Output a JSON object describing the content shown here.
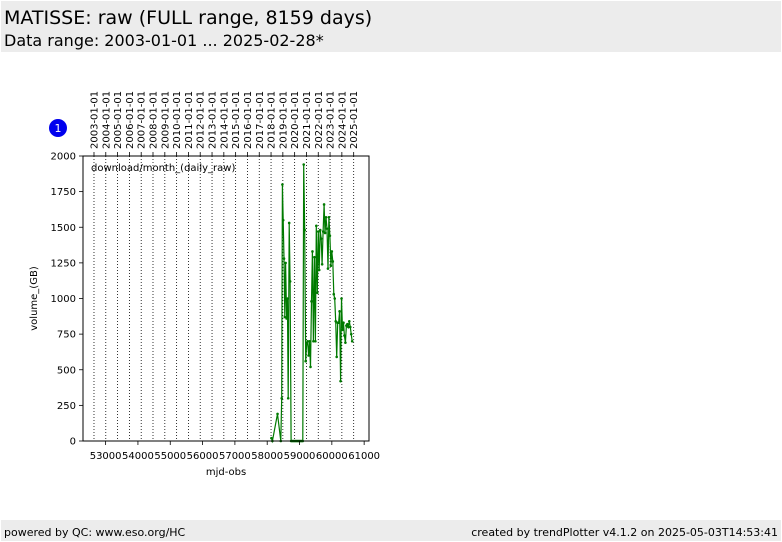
{
  "header": {
    "title": "MATISSE: raw (FULL range, 8159 days)",
    "subtitle": "Data range: 2003-01-01 ... 2025-02-28*"
  },
  "footer": {
    "left": "powered by QC: www.eso.org/HC",
    "right": "created by trendPlotter v4.1.2 on 2025-05-03T14:53:41"
  },
  "colors": {
    "series": "#007a00",
    "badge": "#0000ee",
    "panel": "#ececec"
  },
  "badge": {
    "label": "1"
  },
  "chart_data": {
    "type": "line",
    "title": "download/month_(daily_raw)",
    "xlabel": "mjd-obs",
    "ylabel": "volume_(GB)",
    "xlim": [
      52300,
      61150
    ],
    "ylim": [
      0,
      2000
    ],
    "xticks": [
      53000,
      54000,
      55000,
      56000,
      57000,
      58000,
      59000,
      60000,
      61000
    ],
    "xtick_labels": [
      "53000",
      "54000",
      "55000",
      "56000",
      "57000",
      "58000",
      "59000",
      "60000",
      "61000"
    ],
    "yticks": [
      0,
      250,
      500,
      750,
      1000,
      1250,
      1500,
      1750,
      2000
    ],
    "ytick_labels": [
      "0",
      "250",
      "500",
      "750",
      "1000",
      "1250",
      "1500",
      "1750",
      "2000"
    ],
    "date_ticks": [
      {
        "label": "2003-01-01",
        "mjd": 52640
      },
      {
        "label": "2004-01-01",
        "mjd": 53005
      },
      {
        "label": "2005-01-01",
        "mjd": 53371
      },
      {
        "label": "2006-01-01",
        "mjd": 53736
      },
      {
        "label": "2007-01-01",
        "mjd": 54101
      },
      {
        "label": "2008-01-01",
        "mjd": 54466
      },
      {
        "label": "2009-01-01",
        "mjd": 54832
      },
      {
        "label": "2010-01-01",
        "mjd": 55197
      },
      {
        "label": "2011-01-01",
        "mjd": 55562
      },
      {
        "label": "2012-01-01",
        "mjd": 55927
      },
      {
        "label": "2013-01-01",
        "mjd": 56293
      },
      {
        "label": "2014-01-01",
        "mjd": 56658
      },
      {
        "label": "2015-01-01",
        "mjd": 57023
      },
      {
        "label": "2016-01-01",
        "mjd": 57388
      },
      {
        "label": "2017-01-01",
        "mjd": 57754
      },
      {
        "label": "2018-01-01",
        "mjd": 58119
      },
      {
        "label": "2019-01-01",
        "mjd": 58484
      },
      {
        "label": "2020-01-01",
        "mjd": 58849
      },
      {
        "label": "2021-01-01",
        "mjd": 59215
      },
      {
        "label": "2022-01-01",
        "mjd": 59580
      },
      {
        "label": "2023-01-01",
        "mjd": 59945
      },
      {
        "label": "2024-01-01",
        "mjd": 60310
      },
      {
        "label": "2025-01-01",
        "mjd": 60676
      }
    ],
    "grid": "dotted vertical lines at year boundaries",
    "series": [
      {
        "x": [
          58130,
          58160,
          58320,
          58420,
          58450,
          58470,
          58495,
          58520,
          58545,
          58570,
          58600,
          58625,
          58650,
          58680,
          58710,
          58740,
          58770,
          58800,
          58830,
          58860,
          58890,
          58920,
          58950,
          58980,
          59010,
          59040,
          59070,
          59100,
          59130,
          59160,
          59190,
          59220,
          59250,
          59280,
          59310,
          59340,
          59370,
          59400,
          59430,
          59460,
          59490,
          59520,
          59550,
          59580,
          59610,
          59640,
          59670,
          59700,
          59730,
          59760,
          59790,
          59820,
          59850,
          59880,
          59910,
          59940,
          59970,
          60000,
          60030,
          60060,
          60090,
          60120,
          60150,
          60180,
          60210,
          60240,
          60270,
          60300,
          60330,
          60360,
          60390,
          60420,
          60450,
          60480,
          60510,
          60540,
          60570,
          60600,
          60630
        ],
        "y": [
          20,
          0,
          190,
          0,
          300,
          1800,
          1550,
          1280,
          870,
          1250,
          860,
          1000,
          300,
          1530,
          1120,
          0,
          0,
          0,
          0,
          0,
          0,
          0,
          0,
          0,
          0,
          0,
          0,
          0,
          1940,
          1480,
          560,
          680,
          700,
          600,
          700,
          520,
          980,
          1330,
          700,
          1290,
          700,
          1510,
          1040,
          1470,
          1200,
          1480,
          1420,
          1240,
          1470,
          1660,
          1460,
          1570,
          1490,
          1210,
          1570,
          1440,
          1230,
          1330,
          1260,
          1030,
          1000,
          840,
          590,
          830,
          830,
          910,
          420,
          1000,
          780,
          830,
          740,
          690,
          810,
          820,
          800,
          840,
          800,
          750,
          700
        ]
      }
    ]
  }
}
